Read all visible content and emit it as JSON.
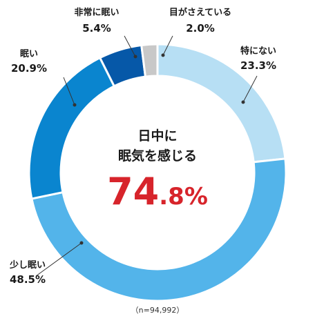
{
  "chart_data": {
    "type": "pie",
    "style": "donut",
    "start_angle_deg": 0,
    "direction": "clockwise",
    "slices": [
      {
        "label": "特にない",
        "value": 23.3,
        "value_label": "23.3%",
        "color": "#b7dff4"
      },
      {
        "label": "少し眠い",
        "value": 48.5,
        "value_label": "48.5%",
        "color": "#53b4ea"
      },
      {
        "label": "眠い",
        "value": 20.9,
        "value_label": "20.9%",
        "color": "#0a85cf"
      },
      {
        "label": "非常に眠い",
        "value": 5.4,
        "value_label": "5.4%",
        "color": "#0658a8"
      },
      {
        "label": "目がさえている",
        "value": 2.0,
        "value_label": "2.0%",
        "color": "#c8c8c8"
      }
    ],
    "center": {
      "line1": "日中に",
      "line2": "眠気を感じる",
      "value_int": "74",
      "value_rest": ".8%",
      "value_color": "#d7242b"
    },
    "note": "（n=94,992）"
  }
}
